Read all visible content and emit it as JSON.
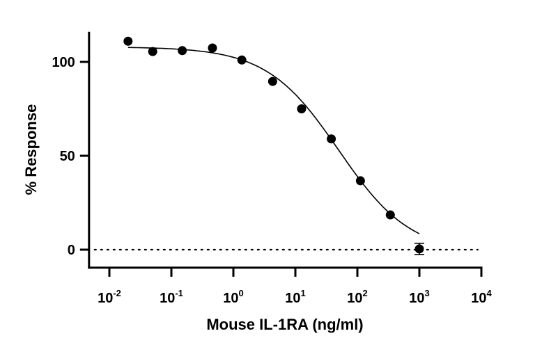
{
  "chart_data": {
    "type": "scatter",
    "xlabel": "Mouse IL-1RA (ng/ml)",
    "ylabel": "% Response",
    "xscale": "log",
    "xlim": [
      0.0047,
      10000
    ],
    "ylim": [
      -9.6,
      116
    ],
    "x_ticks": [
      {
        "value": 0.01,
        "base": "10",
        "exp": "-2"
      },
      {
        "value": 0.1,
        "base": "10",
        "exp": "-1"
      },
      {
        "value": 1,
        "base": "10",
        "exp": "0"
      },
      {
        "value": 10,
        "base": "10",
        "exp": "1"
      },
      {
        "value": 100,
        "base": "10",
        "exp": "2"
      },
      {
        "value": 1000,
        "base": "10",
        "exp": "3"
      },
      {
        "value": 10000,
        "base": "10",
        "exp": "4"
      }
    ],
    "y_ticks": [
      {
        "value": 0,
        "label": "0"
      },
      {
        "value": 50,
        "label": "50"
      },
      {
        "value": 100,
        "label": "100"
      }
    ],
    "grid": false,
    "legend": "none",
    "reference_line": {
      "y": 0,
      "style": "dotted"
    },
    "points": [
      {
        "x": 0.02,
        "y": 111
      },
      {
        "x": 0.05,
        "y": 105.5
      },
      {
        "x": 0.15,
        "y": 106
      },
      {
        "x": 0.46,
        "y": 107.4
      },
      {
        "x": 1.37,
        "y": 101
      },
      {
        "x": 4.3,
        "y": 89.6
      },
      {
        "x": 12.6,
        "y": 75
      },
      {
        "x": 38,
        "y": 59
      },
      {
        "x": 112,
        "y": 36.7
      },
      {
        "x": 340,
        "y": 18.5
      },
      {
        "x": 1000,
        "y": 0.4,
        "err": 3
      }
    ],
    "fit": {
      "model": "4PL",
      "top": 108,
      "bottom": -2,
      "ec50": 50,
      "hill": 0.75,
      "x_range": [
        0.02,
        1000
      ]
    },
    "colors": {
      "marker": "#000000",
      "axis": "#000000"
    }
  }
}
